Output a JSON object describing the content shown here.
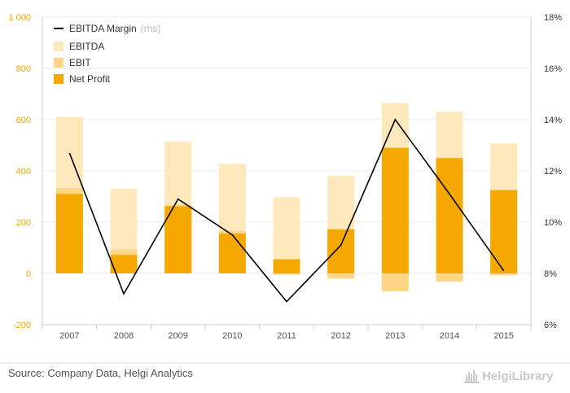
{
  "chart_data": {
    "type": "bar",
    "categories": [
      "2007",
      "2008",
      "2009",
      "2010",
      "2011",
      "2012",
      "2013",
      "2014",
      "2015"
    ],
    "series": [
      {
        "name": "EBITDA",
        "kind": "bar",
        "axis": "left",
        "values": [
          610,
          330,
          515,
          428,
          297,
          380,
          665,
          632,
          507
        ]
      },
      {
        "name": "EBIT",
        "kind": "bar",
        "axis": "left",
        "values": [
          333,
          92,
          268,
          165,
          -5,
          -20,
          -70,
          -32,
          -7
        ]
      },
      {
        "name": "Net Profit",
        "kind": "bar",
        "axis": "left",
        "values": [
          310,
          72,
          262,
          155,
          55,
          172,
          490,
          450,
          325
        ]
      },
      {
        "name": "EBITDA Margin",
        "kind": "line",
        "axis": "right",
        "values": [
          12.7,
          7.2,
          10.9,
          9.5,
          6.9,
          9.1,
          14.0,
          11.1,
          8.1
        ]
      }
    ],
    "legend_suffix": "(rhs)",
    "left_axis": {
      "min": -200,
      "max": 1000,
      "ticks": [
        -200,
        0,
        200,
        400,
        600,
        800,
        1000
      ],
      "tick_labels": [
        "-200",
        "0",
        "200",
        "400",
        "600",
        "800",
        "1 000"
      ]
    },
    "right_axis": {
      "min": 6,
      "max": 18,
      "ticks": [
        6,
        8,
        10,
        12,
        14,
        16,
        18
      ],
      "tick_labels": [
        "6%",
        "8%",
        "10%",
        "12%",
        "14%",
        "16%",
        "18%"
      ]
    },
    "grid": true,
    "legend_position": "top-left",
    "colors": {
      "EBITDA": "#ffe9bc",
      "EBIT": "#ffd685",
      "Net Profit": "#f5a800",
      "EBITDA Margin": "#000000"
    }
  },
  "source": "Source: Company Data, Helgi Analytics",
  "logo": "HelgiLibrary"
}
